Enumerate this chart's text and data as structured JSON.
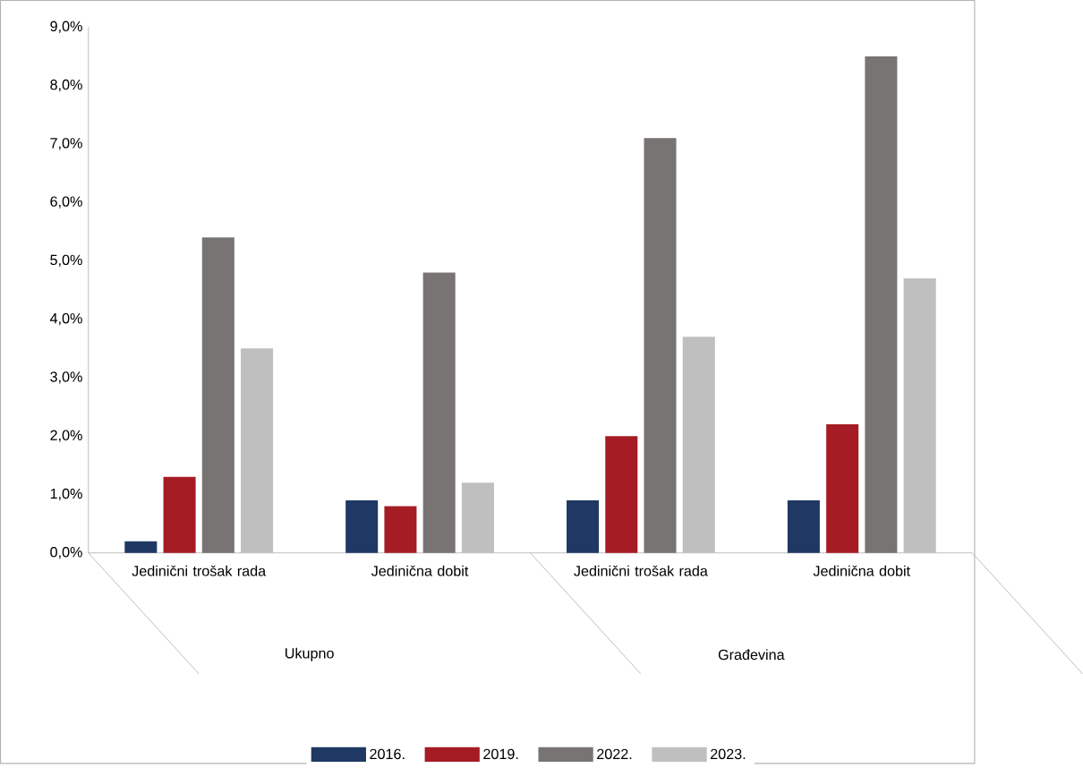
{
  "chart_data": {
    "type": "bar",
    "categories": [
      "Jedinični trošak rada",
      "Jedinična dobit",
      "Jedinični trošak rada",
      "Jedinična dobit"
    ],
    "series": [
      {
        "name": "2016.",
        "color": "#1f3864",
        "values": [
          0.2,
          0.9,
          0.9,
          0.9
        ]
      },
      {
        "name": "2019.",
        "color": "#a61c24",
        "values": [
          1.3,
          0.8,
          2.0,
          2.2
        ]
      },
      {
        "name": "2022.",
        "color": "#787474",
        "values": [
          5.4,
          4.8,
          7.1,
          8.5
        ]
      },
      {
        "name": "2023.",
        "color": "#bfbfbf",
        "values": [
          3.5,
          1.2,
          3.7,
          4.7
        ]
      }
    ],
    "annotations": [
      "Ukupno",
      "Građevina"
    ],
    "ylim": [
      0,
      9
    ],
    "yticks": [
      {
        "value": 0,
        "label": "0,0%"
      },
      {
        "value": 1,
        "label": "1,0%"
      },
      {
        "value": 2,
        "label": "2,0%"
      },
      {
        "value": 3,
        "label": "3,0%"
      },
      {
        "value": 4,
        "label": "4,0%"
      },
      {
        "value": 5,
        "label": "5,0%"
      },
      {
        "value": 6,
        "label": "6,0%"
      },
      {
        "value": 7,
        "label": "7,0%"
      },
      {
        "value": 8,
        "label": "8,0%"
      },
      {
        "value": 9,
        "label": "9,0%"
      }
    ],
    "grid": false,
    "legend": "bottom"
  }
}
